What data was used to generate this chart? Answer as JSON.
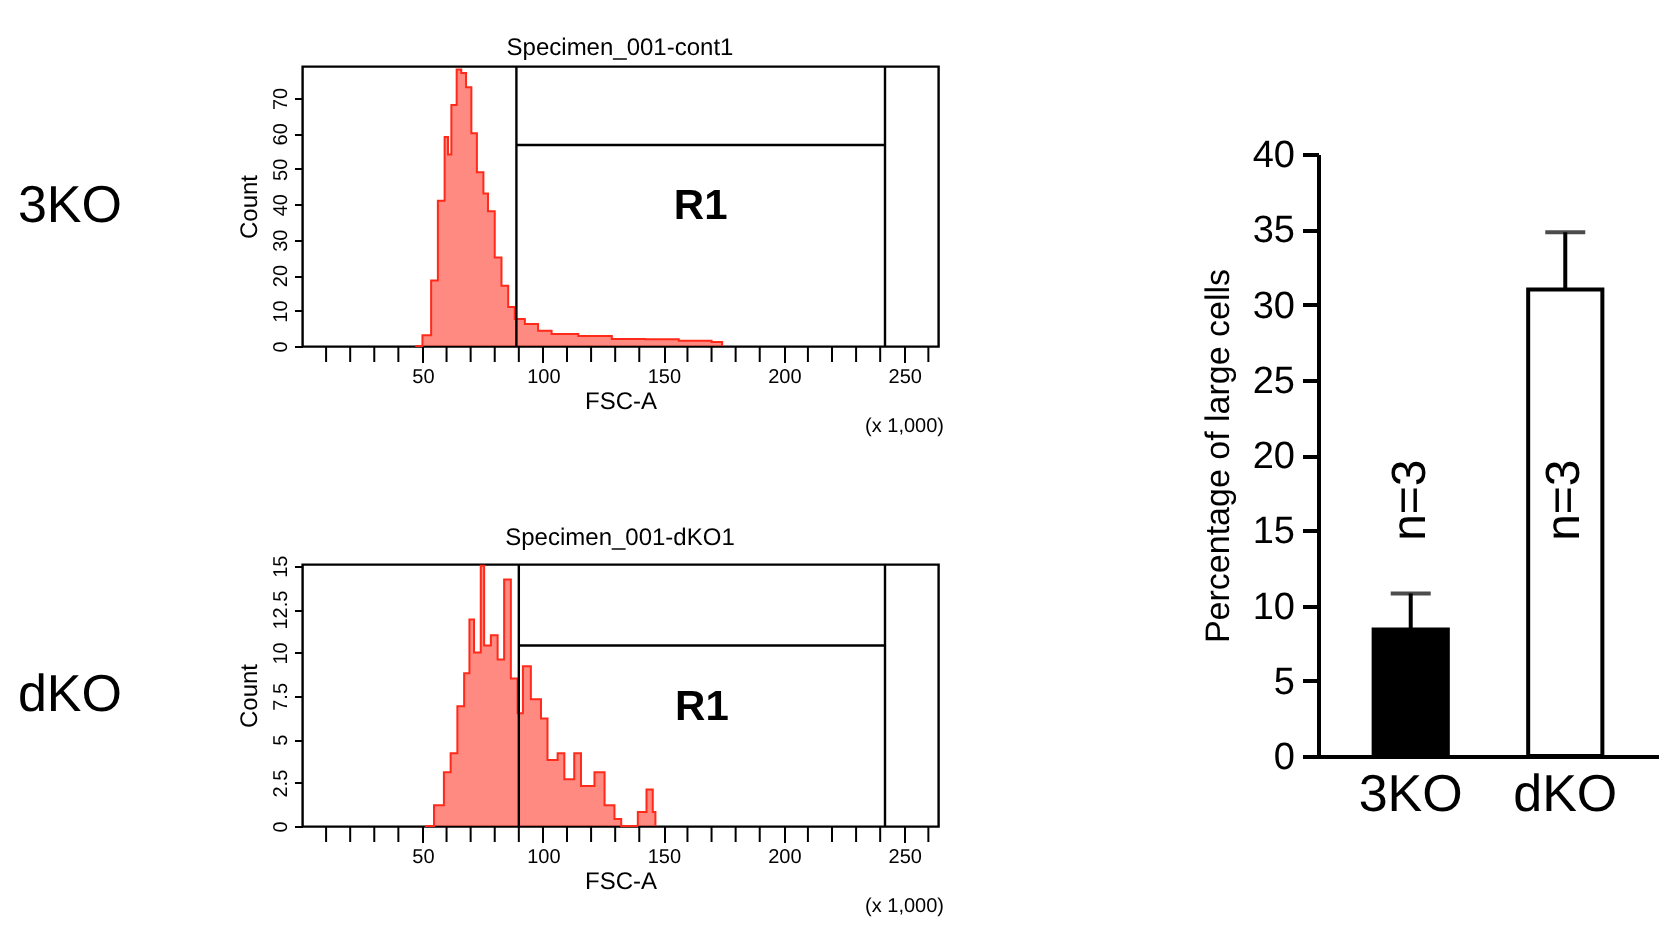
{
  "chart_data": [
    {
      "type": "area",
      "title": "Specimen_001-cont1",
      "xlabel": "FSC-A",
      "ylabel": "Count",
      "annotations": [
        "(x 1,000)",
        "3KO"
      ],
      "series": [
        {
          "color": "#ff2a1a",
          "x": [
            47,
            50,
            53.6,
            56.4,
            59.2,
            60.6,
            62,
            64.2,
            66.1,
            68.1,
            70.3,
            72.6,
            75.3,
            77.2,
            80,
            82.8,
            85.6,
            88.3,
            92.5,
            98,
            103.6,
            114.7,
            128.6,
            142.5,
            156.4,
            170,
            174.4
          ],
          "values": [
            0,
            3,
            18.5,
            41,
            59,
            54,
            68,
            78,
            77,
            73,
            60,
            49,
            43,
            38,
            25,
            17,
            11,
            7.6,
            6.2,
            4.3,
            3.4,
            2.8,
            2,
            1.9,
            1.5,
            1.1,
            0
          ]
        }
      ],
      "xlim": [
        0,
        264
      ],
      "ylim": [
        0,
        79
      ],
      "xticks": [
        {
          "value": 10,
          "label": null
        },
        {
          "value": 20,
          "label": null
        },
        {
          "value": 30,
          "label": null
        },
        {
          "value": 40,
          "label": null
        },
        50,
        {
          "value": 60,
          "label": null
        },
        {
          "value": 70,
          "label": null
        },
        {
          "value": 80,
          "label": null
        },
        {
          "value": 90,
          "label": null
        },
        100,
        {
          "value": 110,
          "label": null
        },
        {
          "value": 120,
          "label": null
        },
        {
          "value": 130,
          "label": null
        },
        {
          "value": 140,
          "label": null
        },
        150,
        {
          "value": 160,
          "label": null
        },
        {
          "value": 170,
          "label": null
        },
        {
          "value": 180,
          "label": null
        },
        {
          "value": 190,
          "label": null
        },
        200,
        {
          "value": 210,
          "label": null
        },
        {
          "value": 220,
          "label": null
        },
        {
          "value": 230,
          "label": null
        },
        {
          "value": 240,
          "label": null
        },
        250,
        {
          "value": 260,
          "label": null
        }
      ],
      "yticks": [
        0,
        10,
        20,
        30,
        40,
        50,
        60,
        70
      ],
      "ref_lines": [
        {
          "axis": "x",
          "value": 89
        },
        {
          "axis": "x",
          "value": 242
        },
        {
          "axis": "y",
          "value": 56.7,
          "label": "R1"
        }
      ]
    },
    {
      "type": "area",
      "title": "Specimen_001-dKO1",
      "xlabel": "FSC-A",
      "ylabel": "Count",
      "annotations": [
        "(x 1,000)",
        "dKO"
      ],
      "series": [
        {
          "color": "#ff2a1a",
          "x": [
            51,
            54.8,
            58.9,
            61.7,
            64.5,
            67.3,
            69.5,
            71.4,
            74.2,
            75.6,
            78.4,
            81.2,
            83.9,
            86.7,
            89.5,
            91.7,
            95,
            99.2,
            101.9,
            106.1,
            108.9,
            113,
            115.8,
            121.4,
            125.6,
            129.7,
            132.5,
            139.4,
            143,
            145.6,
            146.7
          ],
          "values": [
            0,
            1.2,
            3.1,
            4.2,
            6.9,
            8.8,
            11.9,
            10,
            15,
            10.4,
            11,
            9.6,
            14.2,
            8.5,
            6.5,
            9.2,
            7.3,
            6.2,
            3.8,
            4.2,
            2.7,
            4.2,
            2.3,
            3.1,
            1.2,
            0.4,
            0,
            0.8,
            2.1,
            0.8,
            0
          ]
        }
      ],
      "xlim": [
        0,
        264
      ],
      "ylim": [
        0,
        15.1
      ],
      "xticks": [
        {
          "value": 10,
          "label": null
        },
        {
          "value": 20,
          "label": null
        },
        {
          "value": 30,
          "label": null
        },
        {
          "value": 40,
          "label": null
        },
        50,
        {
          "value": 60,
          "label": null
        },
        {
          "value": 70,
          "label": null
        },
        {
          "value": 80,
          "label": null
        },
        {
          "value": 90,
          "label": null
        },
        100,
        {
          "value": 110,
          "label": null
        },
        {
          "value": 120,
          "label": null
        },
        {
          "value": 130,
          "label": null
        },
        {
          "value": 140,
          "label": null
        },
        150,
        {
          "value": 160,
          "label": null
        },
        {
          "value": 170,
          "label": null
        },
        {
          "value": 180,
          "label": null
        },
        {
          "value": 190,
          "label": null
        },
        200,
        {
          "value": 210,
          "label": null
        },
        {
          "value": 220,
          "label": null
        },
        {
          "value": 230,
          "label": null
        },
        {
          "value": 240,
          "label": null
        },
        250,
        {
          "value": 260,
          "label": null
        }
      ],
      "yticks": [
        0,
        2.5,
        5,
        7.5,
        10,
        12.5,
        15
      ],
      "ref_lines": [
        {
          "axis": "x",
          "value": 90
        },
        {
          "axis": "x",
          "value": 242
        },
        {
          "axis": "y",
          "value": 10.4,
          "label": "R1"
        }
      ]
    },
    {
      "type": "bar",
      "ylabel": "Percentage of large cells",
      "categories": [
        "3KO",
        "dKO"
      ],
      "values": [
        8.4,
        31.0
      ],
      "colors": [
        "#000000",
        "#ffffff"
      ],
      "errors": [
        [
          8.4,
          10.8
        ],
        [
          31.0,
          34.8
        ]
      ],
      "annotations": [
        "n=3",
        "n=3"
      ],
      "ylim": [
        0,
        40
      ],
      "yticks": [
        0,
        5,
        10,
        15,
        20,
        25,
        30,
        35,
        40
      ]
    }
  ]
}
